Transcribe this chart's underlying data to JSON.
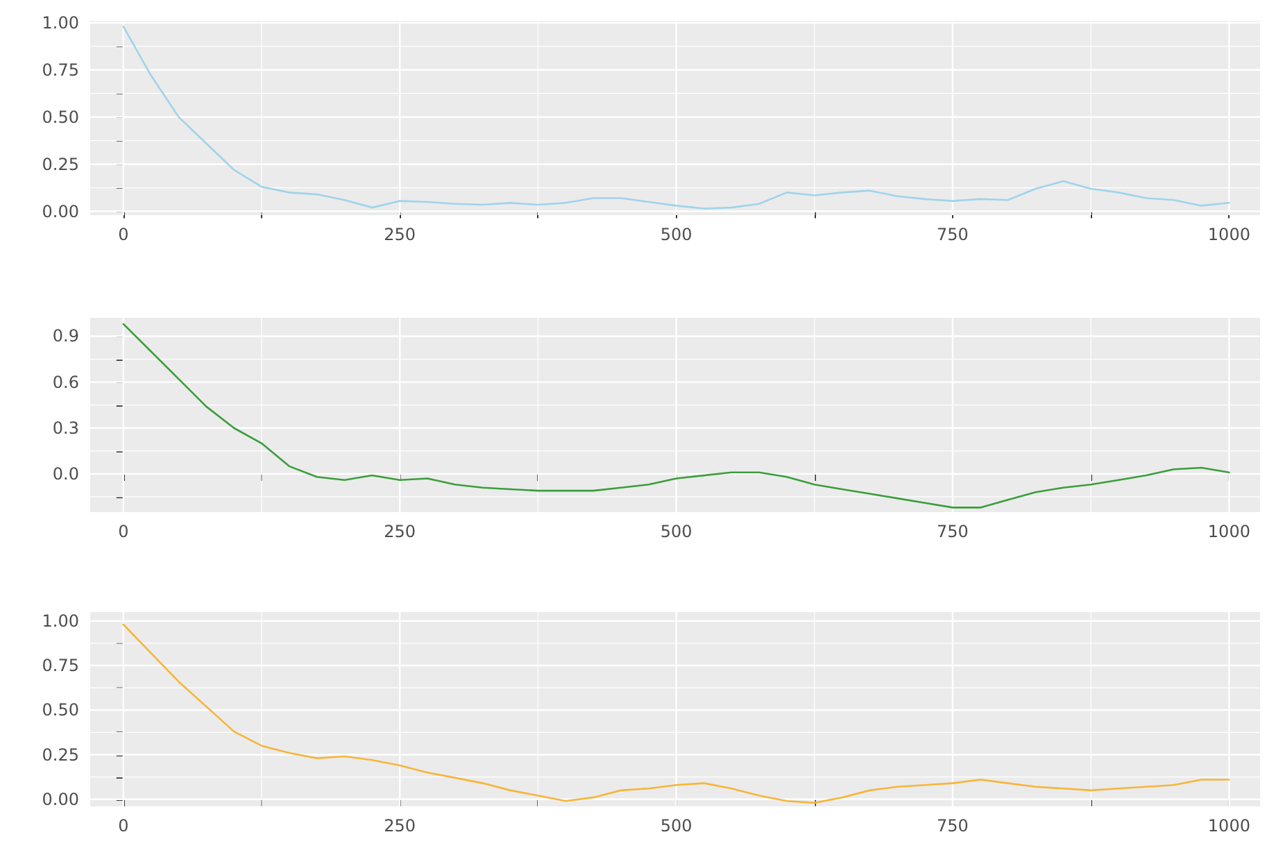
{
  "chart_data": [
    {
      "type": "line",
      "x": [
        0,
        25,
        50,
        75,
        100,
        125,
        150,
        175,
        200,
        225,
        250,
        275,
        300,
        325,
        350,
        375,
        400,
        425,
        450,
        475,
        500,
        525,
        550,
        575,
        600,
        625,
        650,
        675,
        700,
        725,
        750,
        775,
        800,
        825,
        850,
        875,
        900,
        925,
        950,
        975,
        1000
      ],
      "series": [
        {
          "color": "#9fd4ea",
          "values": [
            0.98,
            0.72,
            0.5,
            0.36,
            0.22,
            0.13,
            0.1,
            0.09,
            0.06,
            0.02,
            0.055,
            0.05,
            0.04,
            0.035,
            0.045,
            0.035,
            0.045,
            0.07,
            0.07,
            0.05,
            0.03,
            0.015,
            0.02,
            0.04,
            0.1,
            0.085,
            0.1,
            0.11,
            0.08,
            0.065,
            0.055,
            0.065,
            0.06,
            0.12,
            0.16,
            0.12,
            0.1,
            0.07,
            0.06,
            0.03,
            0.045
          ]
        }
      ],
      "xlim": [
        -30,
        1028
      ],
      "ylim": [
        -0.02,
        1.01
      ],
      "xticks": [
        0,
        {
          "value": 125,
          "label": null
        },
        250,
        {
          "value": 375,
          "label": null
        },
        500,
        {
          "value": 625,
          "label": null
        },
        750,
        {
          "value": 875,
          "label": null
        },
        1000
      ],
      "yticks": [
        {
          "value": 0,
          "label": "0.00"
        },
        {
          "value": 0.125,
          "label": null
        },
        {
          "value": 0.25,
          "label": "0.25"
        },
        {
          "value": 0.375,
          "label": null
        },
        {
          "value": 0.5,
          "label": "0.50"
        },
        {
          "value": 0.625,
          "label": null
        },
        {
          "value": 0.75,
          "label": "0.75"
        },
        {
          "value": 0.875,
          "label": null
        },
        {
          "value": 1,
          "label": "1.00"
        }
      ],
      "grid": true,
      "marker": "none",
      "line_style": "solid"
    },
    {
      "type": "line",
      "x": [
        0,
        25,
        50,
        75,
        100,
        125,
        150,
        175,
        200,
        225,
        250,
        275,
        300,
        325,
        350,
        375,
        400,
        425,
        450,
        475,
        500,
        525,
        550,
        575,
        600,
        625,
        650,
        675,
        700,
        725,
        750,
        775,
        800,
        825,
        850,
        875,
        900,
        925,
        950,
        975,
        1000
      ],
      "series": [
        {
          "color": "#3a9e3a",
          "values": [
            0.98,
            0.8,
            0.62,
            0.44,
            0.3,
            0.2,
            0.05,
            -0.02,
            -0.04,
            -0.01,
            -0.04,
            -0.03,
            -0.07,
            -0.09,
            -0.1,
            -0.11,
            -0.11,
            -0.11,
            -0.09,
            -0.07,
            -0.03,
            -0.01,
            0.01,
            0.01,
            -0.02,
            -0.07,
            -0.1,
            -0.13,
            -0.16,
            -0.19,
            -0.22,
            -0.22,
            -0.17,
            -0.12,
            -0.09,
            -0.07,
            -0.04,
            -0.01,
            0.03,
            0.04,
            0.01
          ]
        }
      ],
      "xlim": [
        -30,
        1028
      ],
      "ylim": [
        -0.25,
        1.02
      ],
      "xticks": [
        0,
        {
          "value": 125,
          "label": null
        },
        250,
        {
          "value": 375,
          "label": null
        },
        500,
        {
          "value": 625,
          "label": null
        },
        750,
        {
          "value": 875,
          "label": null
        },
        1000
      ],
      "yticks": [
        {
          "value": -0.15,
          "label": null
        },
        {
          "value": 0,
          "label": "0.0"
        },
        {
          "value": 0.15,
          "label": null
        },
        {
          "value": 0.3,
          "label": "0.3"
        },
        {
          "value": 0.45,
          "label": null
        },
        {
          "value": 0.6,
          "label": "0.6"
        },
        {
          "value": 0.75,
          "label": null
        },
        {
          "value": 0.9,
          "label": "0.9"
        }
      ],
      "grid": true,
      "marker": "none",
      "line_style": "solid"
    },
    {
      "type": "line",
      "x": [
        0,
        25,
        50,
        75,
        100,
        125,
        150,
        175,
        200,
        225,
        250,
        275,
        300,
        325,
        350,
        375,
        400,
        425,
        450,
        475,
        500,
        525,
        550,
        575,
        600,
        625,
        650,
        675,
        700,
        725,
        750,
        775,
        800,
        825,
        850,
        875,
        900,
        925,
        950,
        975,
        1000
      ],
      "series": [
        {
          "color": "#f7b538",
          "values": [
            0.98,
            0.82,
            0.66,
            0.52,
            0.38,
            0.3,
            0.26,
            0.23,
            0.24,
            0.22,
            0.19,
            0.15,
            0.12,
            0.09,
            0.05,
            0.02,
            -0.01,
            0.01,
            0.05,
            0.06,
            0.08,
            0.09,
            0.06,
            0.02,
            -0.01,
            -0.02,
            0.01,
            0.05,
            0.07,
            0.08,
            0.09,
            0.11,
            0.09,
            0.07,
            0.06,
            0.05,
            0.06,
            0.07,
            0.08,
            0.11,
            0.11
          ]
        }
      ],
      "xlim": [
        -30,
        1028
      ],
      "ylim": [
        -0.04,
        1.05
      ],
      "xticks": [
        0,
        {
          "value": 125,
          "label": null
        },
        250,
        {
          "value": 375,
          "label": null
        },
        500,
        {
          "value": 625,
          "label": null
        },
        750,
        {
          "value": 875,
          "label": null
        },
        1000
      ],
      "yticks": [
        {
          "value": 0,
          "label": "0.00"
        },
        {
          "value": 0.125,
          "label": null
        },
        {
          "value": 0.25,
          "label": "0.25"
        },
        {
          "value": 0.375,
          "label": null
        },
        {
          "value": 0.5,
          "label": "0.50"
        },
        {
          "value": 0.625,
          "label": null
        },
        {
          "value": 0.75,
          "label": "0.75"
        },
        {
          "value": 0.875,
          "label": null
        },
        {
          "value": 1,
          "label": "1.00"
        }
      ],
      "grid": true,
      "marker": "none",
      "line_style": "solid"
    }
  ]
}
